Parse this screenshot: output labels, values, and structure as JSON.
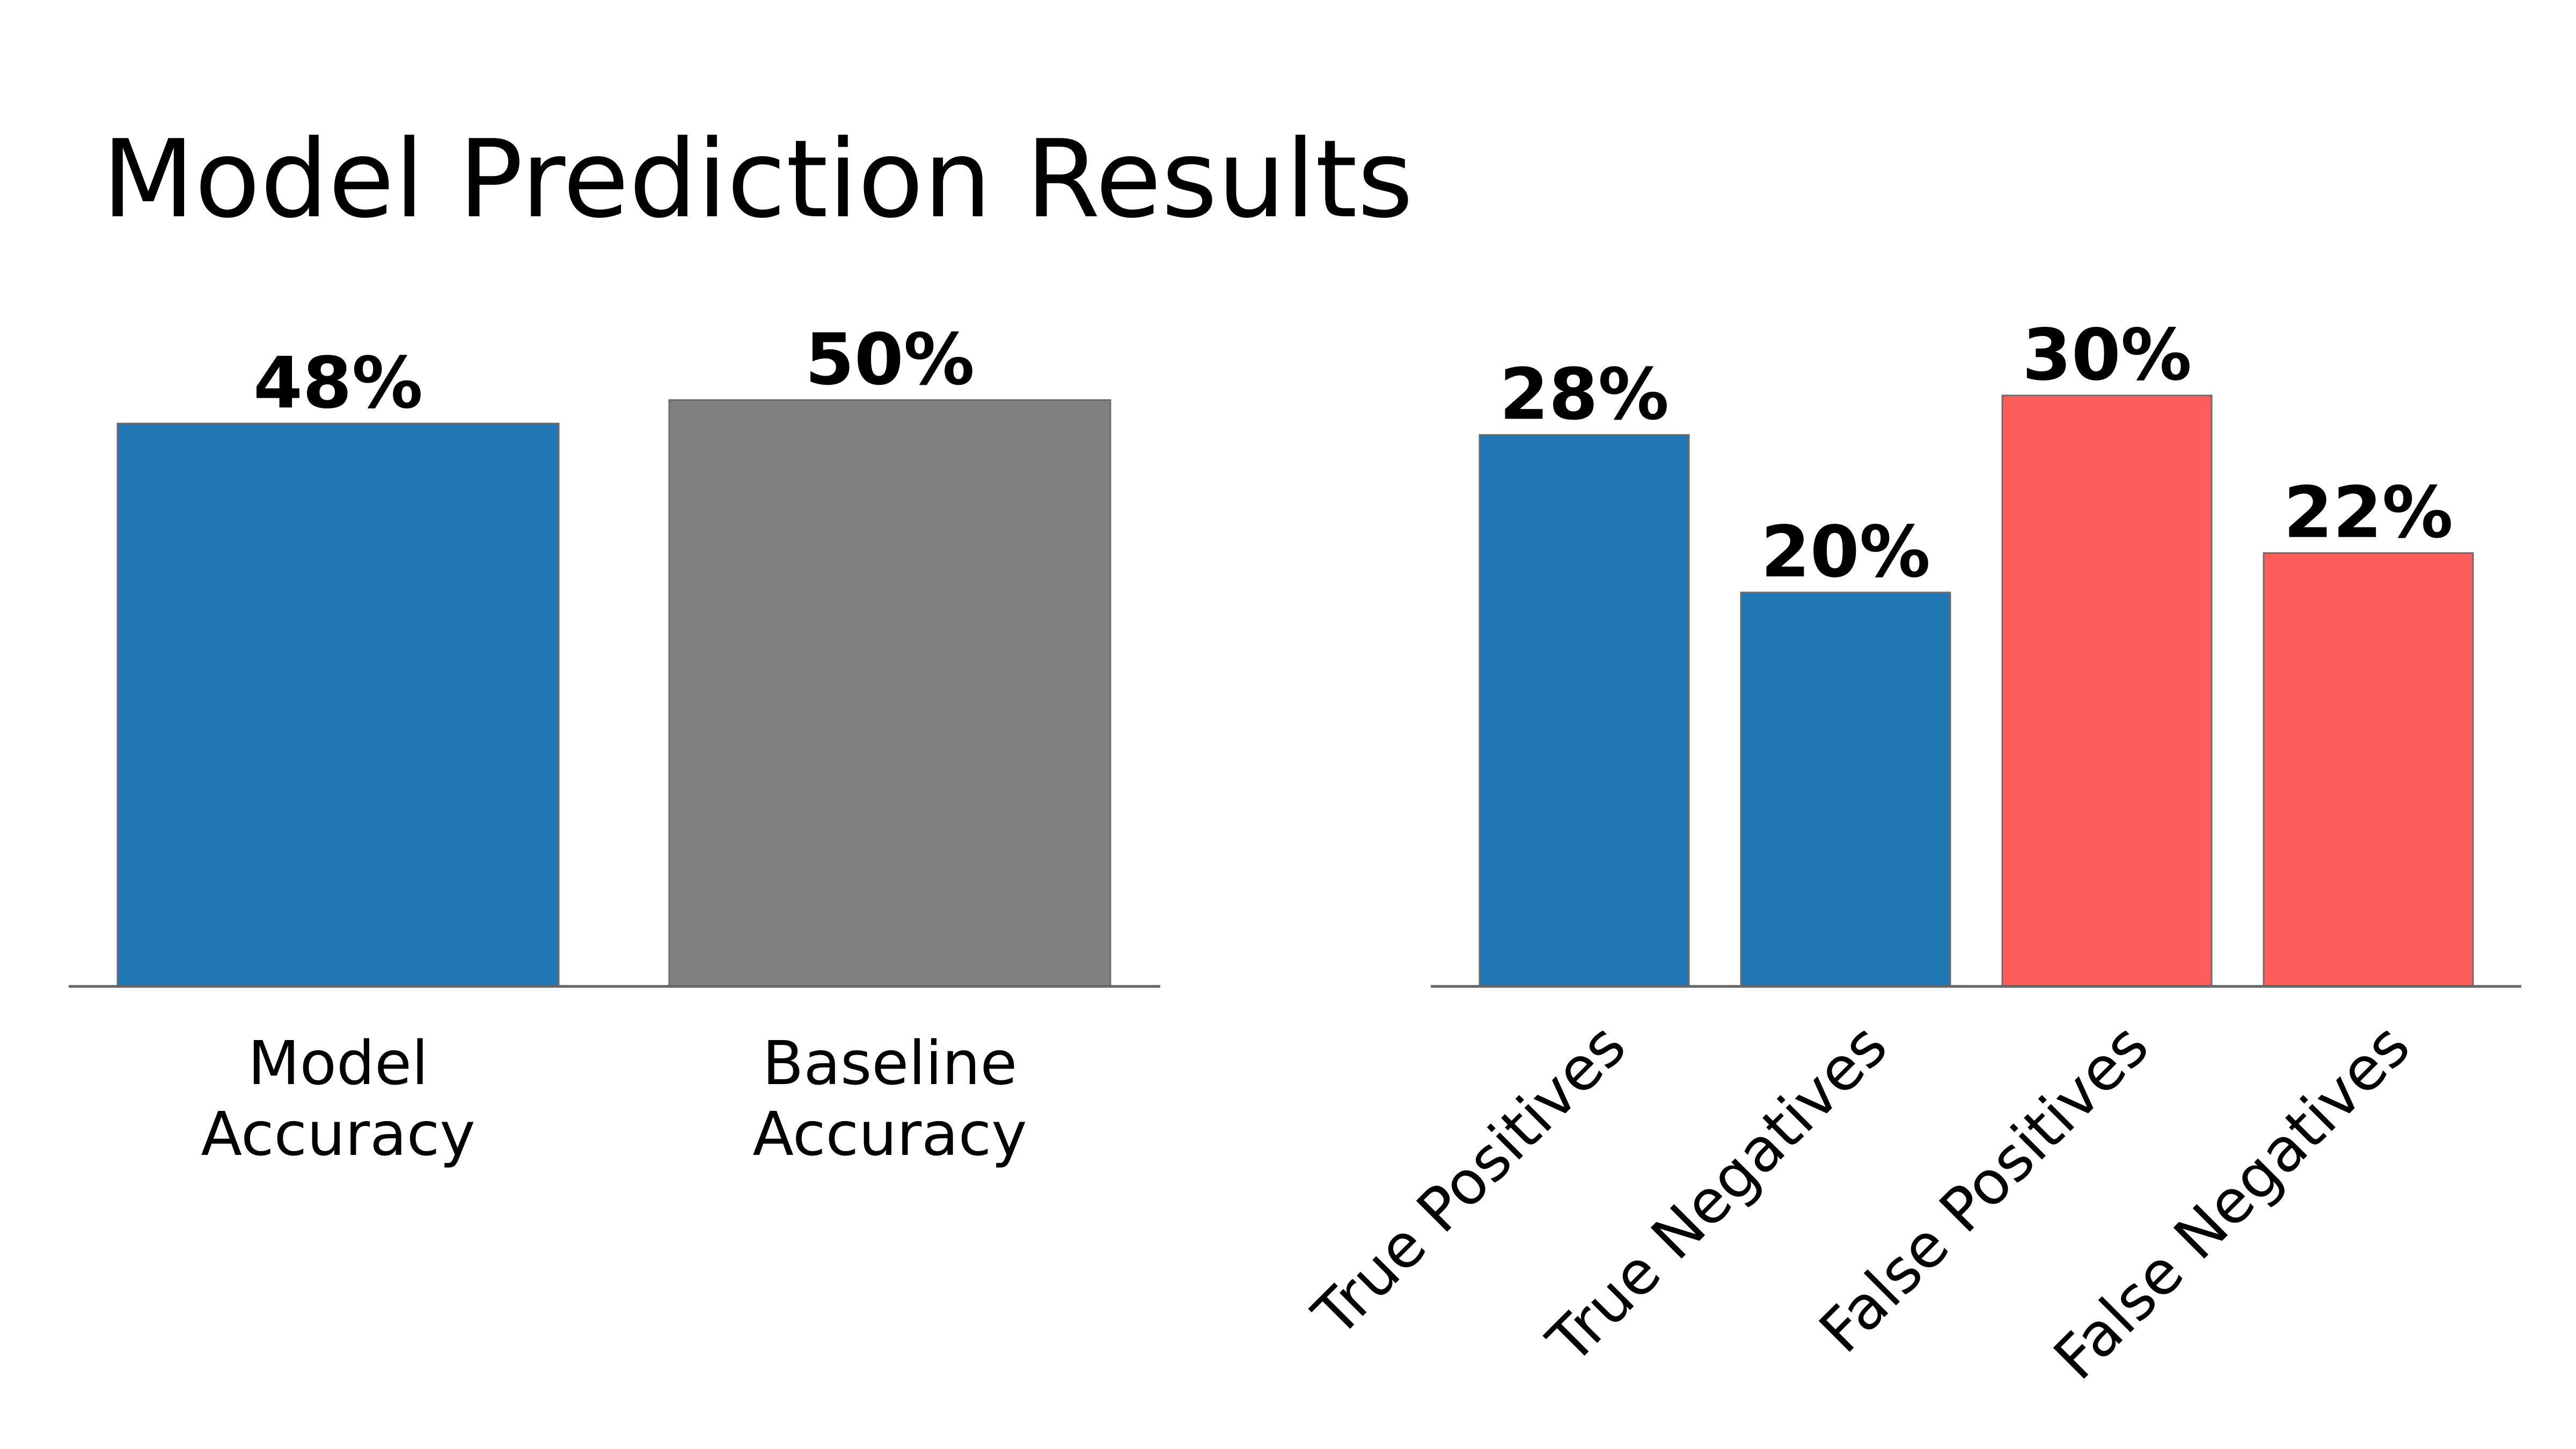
{
  "title": "Model Prediction Results",
  "chart_data": [
    {
      "type": "bar",
      "categories": [
        [
          "Model",
          "Accuracy"
        ],
        [
          "Baseline",
          "Accuracy"
        ]
      ],
      "values": [
        48,
        50
      ],
      "value_labels": [
        "48%",
        "50%"
      ],
      "colors": [
        "#2077b4",
        "#808080"
      ],
      "ylim": [
        0,
        60
      ],
      "grid": false
    },
    {
      "type": "bar",
      "categories": [
        "True Positives",
        "True Negatives",
        "False Positives",
        "False Negatives"
      ],
      "values": [
        28,
        20,
        30,
        22
      ],
      "value_labels": [
        "28%",
        "20%",
        "30%",
        "22%"
      ],
      "colors": [
        "#2077b4",
        "#2077b4",
        "#ff5c5c",
        "#ff5c5c"
      ],
      "ylim": [
        0,
        36
      ],
      "grid": false
    }
  ]
}
